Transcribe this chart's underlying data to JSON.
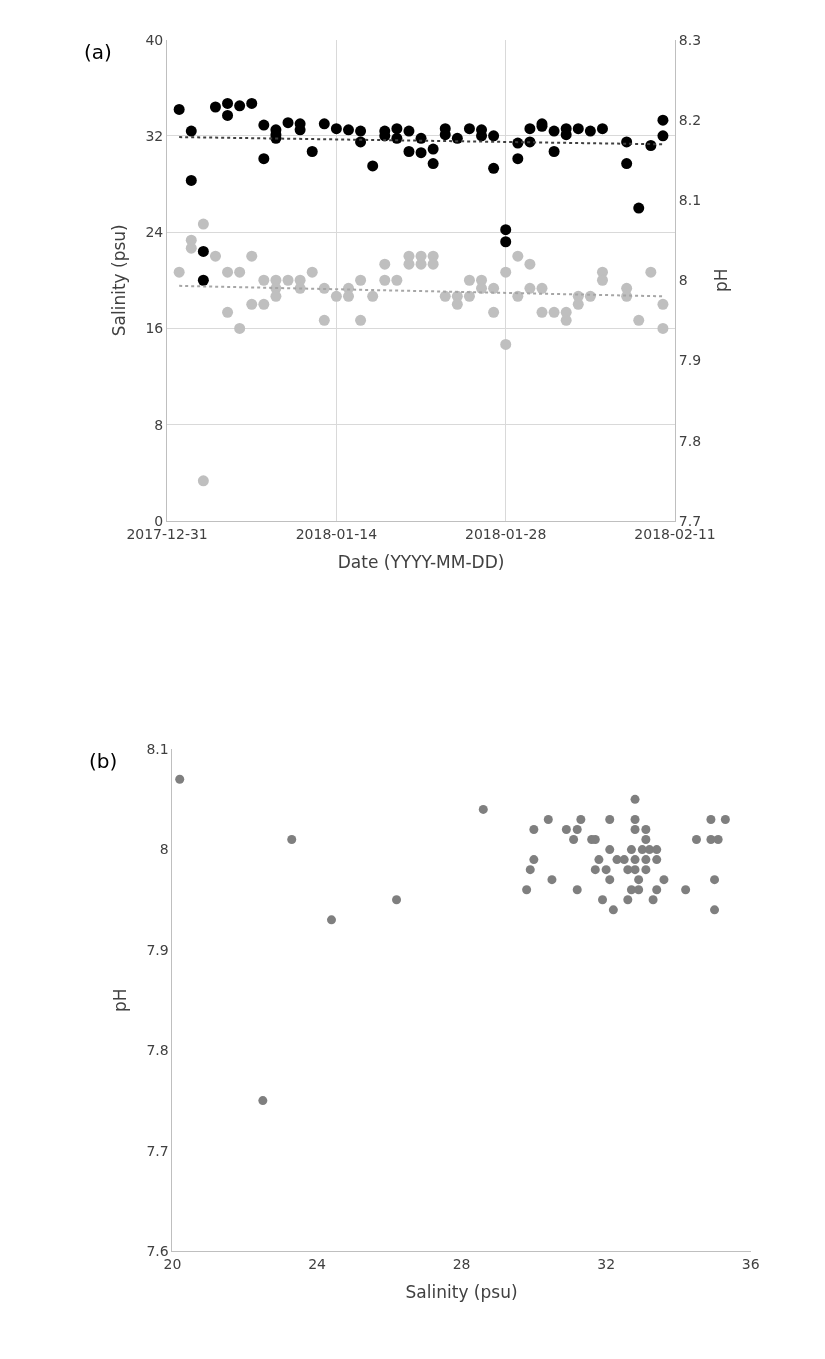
{
  "chart_data": [
    {
      "type": "scatter",
      "xlabel": "Date (YYYY-MM-DD)",
      "ylabel": "Salinity (psu)",
      "y2label": "pH",
      "annotations": [
        "(a)"
      ],
      "xlim": [
        "2017-12-31",
        "2018-02-11"
      ],
      "xticks": [
        "2017-12-31",
        "2018-01-14",
        "2018-01-28",
        "2018-02-11"
      ],
      "ylim": [
        0,
        40
      ],
      "yticks": [
        0,
        8,
        16,
        24,
        32,
        40
      ],
      "y2lim": [
        7.7,
        8.3
      ],
      "y2ticks": [
        7.7,
        7.8,
        7.9,
        8,
        8.1,
        8.2,
        8.3
      ],
      "grid": true,
      "marker": "circle",
      "series": [
        {
          "color": "#000000",
          "x": [
            "2018-01-01",
            "2018-01-02",
            "2018-01-02",
            "2018-01-03",
            "2018-01-03",
            "2018-01-04",
            "2018-01-05",
            "2018-01-05",
            "2018-01-06",
            "2018-01-07",
            "2018-01-08",
            "2018-01-08",
            "2018-01-09",
            "2018-01-09",
            "2018-01-09",
            "2018-01-10",
            "2018-01-11",
            "2018-01-11",
            "2018-01-12",
            "2018-01-13",
            "2018-01-14",
            "2018-01-15",
            "2018-01-16",
            "2018-01-16",
            "2018-01-17",
            "2018-01-18",
            "2018-01-18",
            "2018-01-19",
            "2018-01-19",
            "2018-01-20",
            "2018-01-20",
            "2018-01-21",
            "2018-01-21",
            "2018-01-22",
            "2018-01-22",
            "2018-01-23",
            "2018-01-23",
            "2018-01-24",
            "2018-01-25",
            "2018-01-26",
            "2018-01-26",
            "2018-01-27",
            "2018-01-27",
            "2018-01-28",
            "2018-01-28",
            "2018-01-29",
            "2018-01-29",
            "2018-01-30",
            "2018-01-30",
            "2018-01-31",
            "2018-01-31",
            "2018-02-01",
            "2018-02-01",
            "2018-02-02",
            "2018-02-02",
            "2018-02-03",
            "2018-02-04",
            "2018-02-05",
            "2018-02-07",
            "2018-02-07",
            "2018-02-08",
            "2018-02-09",
            "2018-02-10",
            "2018-02-10"
          ],
          "values": [
            34.2,
            32.4,
            28.3,
            22.4,
            20.0,
            34.4,
            34.7,
            33.7,
            34.5,
            34.7,
            32.9,
            30.1,
            32.5,
            32.1,
            31.8,
            33.1,
            33.0,
            32.5,
            30.7,
            33.0,
            32.6,
            32.5,
            32.4,
            31.5,
            29.5,
            32.4,
            32.0,
            32.6,
            31.8,
            32.4,
            30.7,
            31.8,
            30.6,
            30.9,
            29.7,
            32.6,
            32.1,
            31.8,
            32.6,
            32.5,
            32.0,
            32.0,
            29.3,
            24.2,
            23.2,
            31.4,
            30.1,
            32.6,
            31.5,
            33.0,
            32.8,
            32.4,
            30.7,
            32.6,
            32.1,
            32.6,
            32.4,
            32.6,
            31.5,
            29.7,
            26.0,
            31.2,
            33.3,
            32.0
          ]
        },
        {
          "axis": "y2",
          "color": "#bfbfbf",
          "x": [
            "2018-01-01",
            "2018-01-02",
            "2018-01-02",
            "2018-01-03",
            "2018-01-03",
            "2018-01-04",
            "2018-01-05",
            "2018-01-05",
            "2018-01-06",
            "2018-01-06",
            "2018-01-07",
            "2018-01-07",
            "2018-01-08",
            "2018-01-08",
            "2018-01-09",
            "2018-01-09",
            "2018-01-09",
            "2018-01-10",
            "2018-01-11",
            "2018-01-11",
            "2018-01-12",
            "2018-01-13",
            "2018-01-13",
            "2018-01-14",
            "2018-01-15",
            "2018-01-15",
            "2018-01-16",
            "2018-01-16",
            "2018-01-17",
            "2018-01-18",
            "2018-01-18",
            "2018-01-19",
            "2018-01-20",
            "2018-01-20",
            "2018-01-21",
            "2018-01-21",
            "2018-01-22",
            "2018-01-22",
            "2018-01-23",
            "2018-01-24",
            "2018-01-24",
            "2018-01-25",
            "2018-01-25",
            "2018-01-26",
            "2018-01-26",
            "2018-01-27",
            "2018-01-27",
            "2018-01-28",
            "2018-01-28",
            "2018-01-29",
            "2018-01-29",
            "2018-01-30",
            "2018-01-30",
            "2018-01-31",
            "2018-01-31",
            "2018-02-01",
            "2018-02-02",
            "2018-02-02",
            "2018-02-03",
            "2018-02-03",
            "2018-02-04",
            "2018-02-05",
            "2018-02-05",
            "2018-02-07",
            "2018-02-07",
            "2018-02-08",
            "2018-02-09",
            "2018-02-10",
            "2018-02-10"
          ],
          "values": [
            8.01,
            8.05,
            8.04,
            8.07,
            7.75,
            8.03,
            8.01,
            7.96,
            8.01,
            7.94,
            8.03,
            7.97,
            8.0,
            7.97,
            8.0,
            7.99,
            7.98,
            8.0,
            8.0,
            7.99,
            8.01,
            7.99,
            7.95,
            7.98,
            7.99,
            7.98,
            8.0,
            7.95,
            7.98,
            8.02,
            8.0,
            8.0,
            8.03,
            8.02,
            8.03,
            8.02,
            8.03,
            8.02,
            7.98,
            7.98,
            7.97,
            8.0,
            7.98,
            8.0,
            7.99,
            7.99,
            7.96,
            8.01,
            7.92,
            8.03,
            7.98,
            8.02,
            7.99,
            7.99,
            7.96,
            7.96,
            7.96,
            7.95,
            7.98,
            7.97,
            7.98,
            8.01,
            8.0,
            7.99,
            7.98,
            7.95,
            8.01,
            7.97,
            7.94
          ]
        },
        {
          "type": "line",
          "marker": "none",
          "color": "#404040",
          "line_style": "dotted",
          "x": [
            "2018-01-01",
            "2018-02-10"
          ],
          "values": [
            31.9,
            31.3
          ]
        },
        {
          "type": "line",
          "marker": "none",
          "axis": "y2",
          "color": "#a6a6a6",
          "line_style": "dotted",
          "x": [
            "2018-01-01",
            "2018-02-10"
          ],
          "values": [
            7.993,
            7.98
          ]
        }
      ]
    },
    {
      "type": "scatter",
      "xlabel": "Salinity (psu)",
      "ylabel": "pH",
      "annotations": [
        "(b)"
      ],
      "xlim": [
        20,
        36
      ],
      "xticks": [
        20,
        24,
        28,
        32,
        36
      ],
      "ylim": [
        7.6,
        8.1
      ],
      "yticks": [
        7.6,
        7.7,
        7.8,
        7.9,
        8,
        8.1
      ],
      "grid": false,
      "marker": "circle",
      "series": [
        {
          "color": "#7f7f7f",
          "x": [
            20.2,
            23.3,
            22.5,
            24.4,
            26.2,
            28.6,
            32.8,
            30.4,
            31.3,
            32.1,
            32.8,
            34.9,
            35.3,
            30.0,
            30.9,
            31.2,
            32.8,
            33.1,
            31.1,
            31.6,
            31.7,
            33.1,
            34.5,
            34.9,
            35.1,
            32.1,
            32.7,
            33.0,
            33.2,
            33.4,
            30.0,
            31.8,
            32.3,
            32.5,
            32.8,
            33.1,
            33.4,
            29.9,
            31.7,
            32.0,
            32.6,
            32.8,
            33.1,
            30.5,
            32.1,
            32.9,
            33.6,
            35.0,
            29.8,
            31.2,
            32.7,
            32.9,
            33.4,
            34.2,
            31.9,
            32.6,
            33.3,
            32.2,
            35.0
          ],
          "values": [
            8.07,
            8.01,
            7.75,
            7.93,
            7.95,
            8.04,
            8.05,
            8.03,
            8.03,
            8.03,
            8.03,
            8.03,
            8.03,
            8.02,
            8.02,
            8.02,
            8.02,
            8.02,
            8.01,
            8.01,
            8.01,
            8.01,
            8.01,
            8.01,
            8.01,
            8.0,
            8.0,
            8.0,
            8.0,
            8.0,
            7.99,
            7.99,
            7.99,
            7.99,
            7.99,
            7.99,
            7.99,
            7.98,
            7.98,
            7.98,
            7.98,
            7.98,
            7.98,
            7.97,
            7.97,
            7.97,
            7.97,
            7.97,
            7.96,
            7.96,
            7.96,
            7.96,
            7.96,
            7.96,
            7.95,
            7.95,
            7.95,
            7.94,
            7.94
          ]
        }
      ]
    }
  ]
}
